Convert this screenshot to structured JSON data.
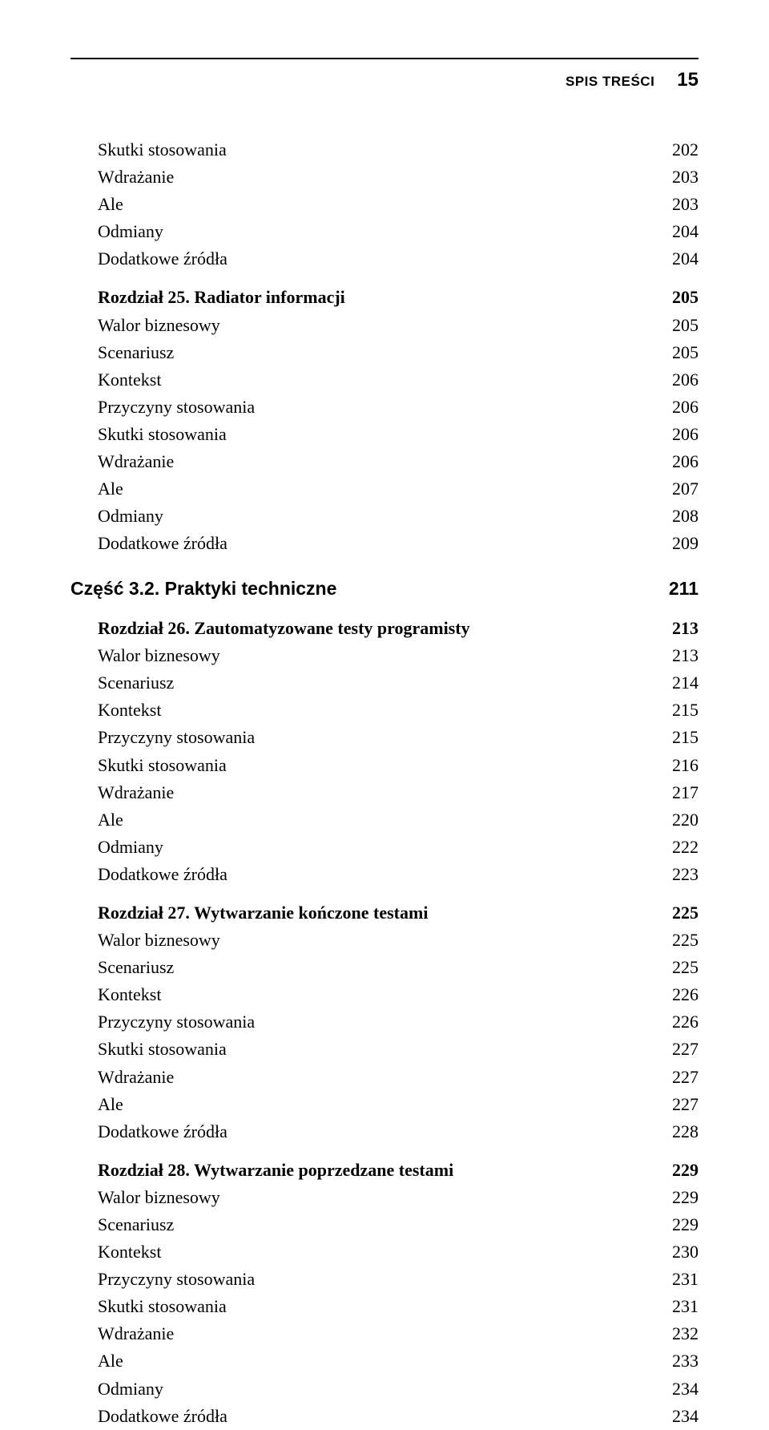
{
  "header": {
    "running_title": "SPIS TREŚCI",
    "page_number": "15"
  },
  "toc": [
    {
      "type": "item",
      "label": "Skutki stosowania",
      "page": "202"
    },
    {
      "type": "item",
      "label": "Wdrażanie",
      "page": "203"
    },
    {
      "type": "item",
      "label": "Ale",
      "page": "203"
    },
    {
      "type": "item",
      "label": "Odmiany",
      "page": "204"
    },
    {
      "type": "item",
      "label": "Dodatkowe źródła",
      "page": "204"
    },
    {
      "type": "chapter",
      "label": "Rozdział 25. Radiator informacji",
      "page": "205"
    },
    {
      "type": "item",
      "label": "Walor biznesowy",
      "page": "205"
    },
    {
      "type": "item",
      "label": "Scenariusz",
      "page": "205"
    },
    {
      "type": "item",
      "label": "Kontekst",
      "page": "206"
    },
    {
      "type": "item",
      "label": "Przyczyny stosowania",
      "page": "206"
    },
    {
      "type": "item",
      "label": "Skutki stosowania",
      "page": "206"
    },
    {
      "type": "item",
      "label": "Wdrażanie",
      "page": "206"
    },
    {
      "type": "item",
      "label": "Ale",
      "page": "207"
    },
    {
      "type": "item",
      "label": "Odmiany",
      "page": "208"
    },
    {
      "type": "item",
      "label": "Dodatkowe źródła",
      "page": "209"
    },
    {
      "type": "part",
      "label": "Część 3.2. Praktyki techniczne",
      "page": "211"
    },
    {
      "type": "chapter",
      "label": "Rozdział 26. Zautomatyzowane testy programisty",
      "page": "213"
    },
    {
      "type": "item",
      "label": "Walor biznesowy",
      "page": "213"
    },
    {
      "type": "item",
      "label": "Scenariusz",
      "page": "214"
    },
    {
      "type": "item",
      "label": "Kontekst",
      "page": "215"
    },
    {
      "type": "item",
      "label": "Przyczyny stosowania",
      "page": "215"
    },
    {
      "type": "item",
      "label": "Skutki stosowania",
      "page": "216"
    },
    {
      "type": "item",
      "label": "Wdrażanie",
      "page": "217"
    },
    {
      "type": "item",
      "label": "Ale",
      "page": "220"
    },
    {
      "type": "item",
      "label": "Odmiany",
      "page": "222"
    },
    {
      "type": "item",
      "label": "Dodatkowe źródła",
      "page": "223"
    },
    {
      "type": "chapter",
      "label": "Rozdział 27. Wytwarzanie kończone testami",
      "page": "225"
    },
    {
      "type": "item",
      "label": "Walor biznesowy",
      "page": "225"
    },
    {
      "type": "item",
      "label": "Scenariusz",
      "page": "225"
    },
    {
      "type": "item",
      "label": "Kontekst",
      "page": "226"
    },
    {
      "type": "item",
      "label": "Przyczyny stosowania",
      "page": "226"
    },
    {
      "type": "item",
      "label": "Skutki stosowania",
      "page": "227"
    },
    {
      "type": "item",
      "label": "Wdrażanie",
      "page": "227"
    },
    {
      "type": "item",
      "label": "Ale",
      "page": "227"
    },
    {
      "type": "item",
      "label": "Dodatkowe źródła",
      "page": "228"
    },
    {
      "type": "chapter",
      "label": "Rozdział 28. Wytwarzanie poprzedzane testami",
      "page": "229"
    },
    {
      "type": "item",
      "label": "Walor biznesowy",
      "page": "229"
    },
    {
      "type": "item",
      "label": "Scenariusz",
      "page": "229"
    },
    {
      "type": "item",
      "label": "Kontekst",
      "page": "230"
    },
    {
      "type": "item",
      "label": "Przyczyny stosowania",
      "page": "231"
    },
    {
      "type": "item",
      "label": "Skutki stosowania",
      "page": "231"
    },
    {
      "type": "item",
      "label": "Wdrażanie",
      "page": "232"
    },
    {
      "type": "item",
      "label": "Ale",
      "page": "233"
    },
    {
      "type": "item",
      "label": "Odmiany",
      "page": "234"
    },
    {
      "type": "item",
      "label": "Dodatkowe źródła",
      "page": "234"
    }
  ]
}
